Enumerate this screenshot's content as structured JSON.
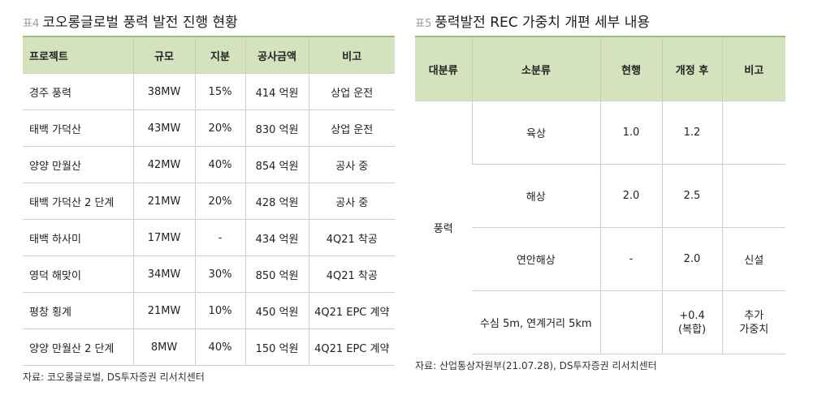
{
  "left": {
    "table_num": "표4",
    "title": "코오롱글로벌 풍력 발전 진행 현황",
    "headers": [
      "프로젝트",
      "규모",
      "지분",
      "공사금액",
      "비고"
    ],
    "rows": [
      [
        "경주 풍력",
        "38MW",
        "15%",
        "414 억원",
        "상업 운전"
      ],
      [
        "태백 가덕산",
        "43MW",
        "20%",
        "830 억원",
        "상업 운전"
      ],
      [
        "양양 만월산",
        "42MW",
        "40%",
        "854 억원",
        "공사 중"
      ],
      [
        "태백 가덕산 2 단계",
        "21MW",
        "20%",
        "428 억원",
        "공사 중"
      ],
      [
        "태백 하사미",
        "17MW",
        "-",
        "434 억원",
        "4Q21 착공"
      ],
      [
        "영덕 해맞이",
        "34MW",
        "30%",
        "850 억원",
        "4Q21 착공"
      ],
      [
        "평창 횡계",
        "21MW",
        "10%",
        "450 억원",
        "4Q21 EPC 계약"
      ],
      [
        "양양 만월산 2 단계",
        "8MW",
        "40%",
        "150 억원",
        "4Q21 EPC 계약"
      ]
    ],
    "source": "자료: 코오롱글로벌, DS투자증권 리서치센터"
  },
  "right": {
    "table_num": "표5",
    "title": "풍력발전 REC 가중치 개편 세부 내용",
    "headers": [
      "대분류",
      "소분류",
      "현행",
      "개정 후",
      "비고"
    ],
    "major": "풍력",
    "rows": [
      {
        "minor": "육상",
        "current": "1.0",
        "revised": "1.2",
        "note": ""
      },
      {
        "minor": "해상",
        "current": "2.0",
        "revised": "2.5",
        "note": ""
      },
      {
        "minor": "연안해상",
        "current": "-",
        "revised": "2.0",
        "note": "신설"
      },
      {
        "minor": "수심 5m, 연계거리 5km",
        "current": "",
        "revised_line1": "+0.4",
        "revised_line2": "(복합)",
        "note_line1": "추가",
        "note_line2": "가중치"
      }
    ],
    "source": "자료: 산업통상자원부(21.07.28), DS투자증권 리서치센터"
  }
}
